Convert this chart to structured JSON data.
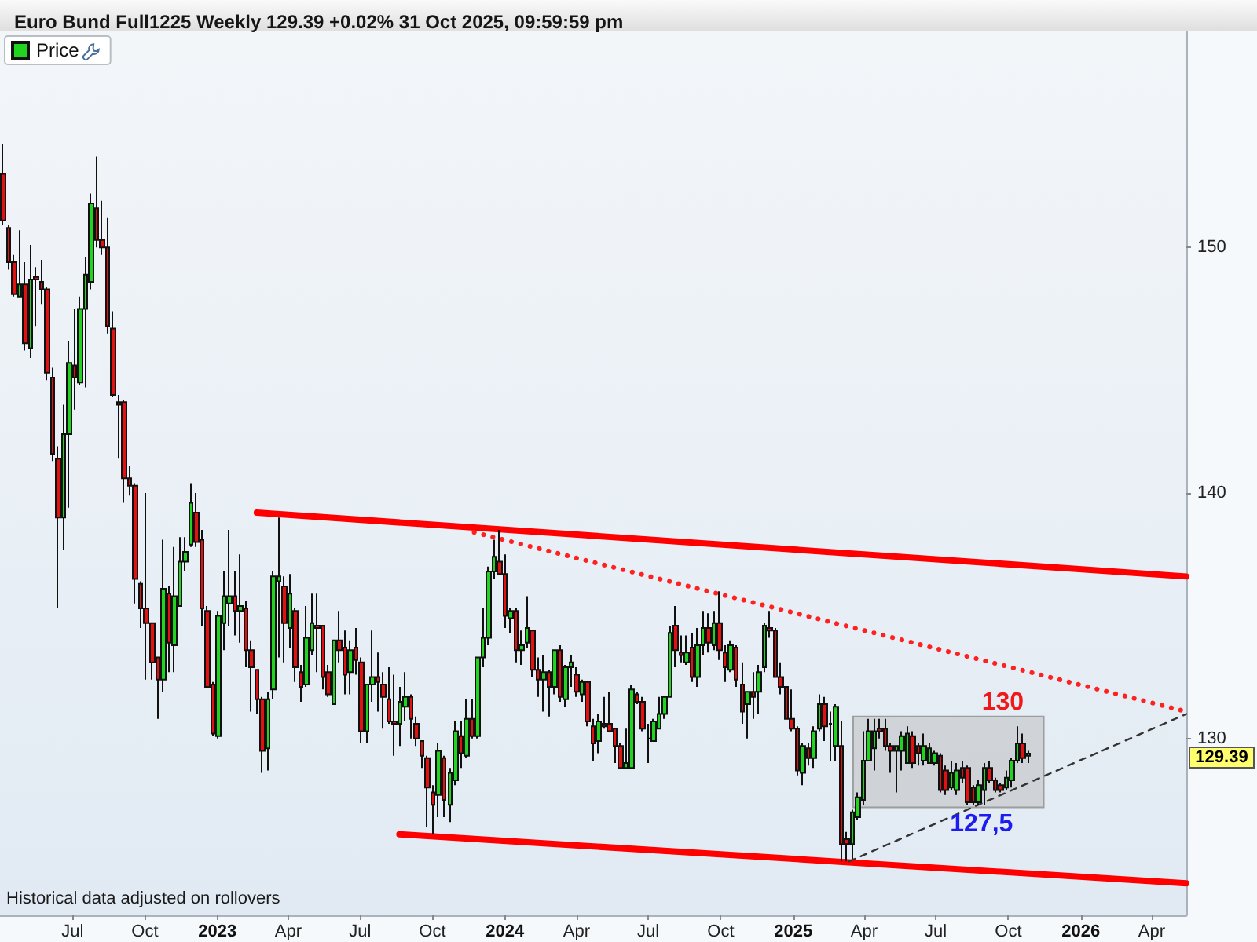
{
  "chart_data": {
    "type": "candlestick",
    "title": "Euro Bund Full1225 Weekly 129.39 +0.02% 31 Oct 2025, 09:59:59 pm",
    "legend": "top left",
    "marker": "none",
    "xlim": [
      "2022-03-31",
      "2026-05-15"
    ],
    "xticks": [
      {
        "value": "2022-07-01",
        "label": "Jul"
      },
      {
        "value": "2022-10-01",
        "label": "Oct"
      },
      {
        "value": "2023-01-01",
        "label": "2023"
      },
      {
        "value": "2023-04-01",
        "label": "Apr"
      },
      {
        "value": "2023-07-01",
        "label": "Jul"
      },
      {
        "value": "2023-10-01",
        "label": "Oct"
      },
      {
        "value": "2024-01-01",
        "label": "2024"
      },
      {
        "value": "2024-04-01",
        "label": "Apr"
      },
      {
        "value": "2024-07-01",
        "label": "Jul"
      },
      {
        "value": "2024-10-01",
        "label": "Oct"
      },
      {
        "value": "2025-01-01",
        "label": "2025"
      },
      {
        "value": "2025-04-01",
        "label": "Apr"
      },
      {
        "value": "2025-07-01",
        "label": "Jul"
      },
      {
        "value": "2025-10-01",
        "label": "Oct"
      },
      {
        "value": "2026-01-01",
        "label": "2026"
      },
      {
        "value": "2026-04-01",
        "label": "Apr"
      }
    ],
    "ylim": [
      122.8,
      158.8
    ],
    "yticks": [
      130,
      140,
      150
    ],
    "annotations": [
      "Historical data adjusted on rollovers",
      "129.39",
      {
        "text": "130",
        "x": "2025-09-24",
        "y": 130.9
      },
      {
        "text": "127,5",
        "x": "2025-08-28",
        "y": 127.2
      }
    ],
    "series": [
      {
        "name": "Price",
        "x": [
          "2022-04-04",
          "2022-04-11",
          "2022-04-18",
          "2022-04-25",
          "2022-05-02",
          "2022-05-09",
          "2022-05-16",
          "2022-05-23",
          "2022-05-30",
          "2022-06-06",
          "2022-06-13",
          "2022-06-20",
          "2022-06-27",
          "2022-07-04",
          "2022-07-11",
          "2022-07-18",
          "2022-07-25",
          "2022-08-01",
          "2022-08-08",
          "2022-08-15",
          "2022-08-22",
          "2022-08-29",
          "2022-09-05",
          "2022-09-12",
          "2022-09-19",
          "2022-09-26",
          "2022-10-03",
          "2022-10-10",
          "2022-10-17",
          "2022-10-24",
          "2022-10-31",
          "2022-11-07",
          "2022-11-14",
          "2022-11-21",
          "2022-11-28",
          "2022-12-05",
          "2022-12-12",
          "2022-12-19",
          "2022-12-26",
          "2023-01-02",
          "2023-01-09",
          "2023-01-16",
          "2023-01-23",
          "2023-01-30",
          "2023-02-06",
          "2023-02-13",
          "2023-02-20",
          "2023-02-27",
          "2023-03-06",
          "2023-03-13",
          "2023-03-20",
          "2023-03-27",
          "2023-04-03",
          "2023-04-10",
          "2023-04-17",
          "2023-04-24",
          "2023-05-01",
          "2023-05-08",
          "2023-05-15",
          "2023-05-22",
          "2023-05-29",
          "2023-06-05",
          "2023-06-12",
          "2023-06-19",
          "2023-06-26",
          "2023-07-03",
          "2023-07-10",
          "2023-07-17",
          "2023-07-24",
          "2023-07-31",
          "2023-08-07",
          "2023-08-14",
          "2023-08-21",
          "2023-08-28",
          "2023-09-04",
          "2023-09-11",
          "2023-09-18",
          "2023-09-25",
          "2023-10-02",
          "2023-10-09",
          "2023-10-16",
          "2023-10-23",
          "2023-10-30",
          "2023-11-06",
          "2023-11-13",
          "2023-11-20",
          "2023-11-27",
          "2023-12-04",
          "2023-12-11",
          "2023-12-18",
          "2023-12-25",
          "2024-01-01",
          "2024-01-08",
          "2024-01-15",
          "2024-01-22",
          "2024-01-29",
          "2024-02-05",
          "2024-02-12",
          "2024-02-19",
          "2024-02-26",
          "2024-03-04",
          "2024-03-11",
          "2024-03-18",
          "2024-03-25",
          "2024-04-01",
          "2024-04-08",
          "2024-04-15",
          "2024-04-22",
          "2024-04-29",
          "2024-05-06",
          "2024-05-13",
          "2024-05-20",
          "2024-05-27",
          "2024-06-03",
          "2024-06-10",
          "2024-06-17",
          "2024-06-24",
          "2024-07-01",
          "2024-07-08",
          "2024-07-15",
          "2024-07-22",
          "2024-07-29",
          "2024-08-05",
          "2024-08-12",
          "2024-08-19",
          "2024-08-26",
          "2024-09-02",
          "2024-09-09",
          "2024-09-16",
          "2024-09-23",
          "2024-09-30",
          "2024-10-07",
          "2024-10-14",
          "2024-10-21",
          "2024-10-28",
          "2024-11-04",
          "2024-11-11",
          "2024-11-18",
          "2024-11-25",
          "2024-12-02",
          "2024-12-09",
          "2024-12-16",
          "2024-12-23",
          "2024-12-30",
          "2025-01-06",
          "2025-01-13",
          "2025-01-20",
          "2025-01-27",
          "2025-02-03",
          "2025-02-10",
          "2025-02-17",
          "2025-02-24",
          "2025-03-03",
          "2025-03-10",
          "2025-03-17",
          "2025-03-24",
          "2025-03-31",
          "2025-04-07",
          "2025-04-14",
          "2025-04-21",
          "2025-04-28",
          "2025-05-05",
          "2025-05-12",
          "2025-05-19",
          "2025-05-26",
          "2025-06-02",
          "2025-06-09",
          "2025-06-16",
          "2025-06-23",
          "2025-06-30",
          "2025-07-07",
          "2025-07-14",
          "2025-07-21",
          "2025-07-28",
          "2025-08-04",
          "2025-08-11",
          "2025-08-18",
          "2025-08-25",
          "2025-09-01",
          "2025-09-08",
          "2025-09-15",
          "2025-09-22",
          "2025-09-29",
          "2025-10-06",
          "2025-10-13",
          "2025-10-20",
          "2025-10-27"
        ],
        "ohlc": [
          [
            153.0,
            154.2,
            150.9,
            151.1
          ],
          [
            150.8,
            150.9,
            149.1,
            149.4
          ],
          [
            149.4,
            149.7,
            148.0,
            148.1
          ],
          [
            148.0,
            150.7,
            148.0,
            148.5
          ],
          [
            148.5,
            149.4,
            145.8,
            146.1
          ],
          [
            145.9,
            150.1,
            145.5,
            148.7
          ],
          [
            148.8,
            149.2,
            146.8,
            148.7
          ],
          [
            148.6,
            149.5,
            147.7,
            148.3
          ],
          [
            148.3,
            148.4,
            144.6,
            144.9
          ],
          [
            144.7,
            145.1,
            141.3,
            141.6
          ],
          [
            141.4,
            141.9,
            135.3,
            139.0
          ],
          [
            139.0,
            143.6,
            137.7,
            142.4
          ],
          [
            142.4,
            146.2,
            139.4,
            145.3
          ],
          [
            145.2,
            147.5,
            143.4,
            144.7
          ],
          [
            144.5,
            148.0,
            144.4,
            147.5
          ],
          [
            147.5,
            149.6,
            144.3,
            148.9
          ],
          [
            148.6,
            152.2,
            148.3,
            151.8
          ],
          [
            151.6,
            153.7,
            150.0,
            150.3
          ],
          [
            150.3,
            151.9,
            149.7,
            150.0
          ],
          [
            150.0,
            151.2,
            146.5,
            146.8
          ],
          [
            146.7,
            147.4,
            143.9,
            144.0
          ],
          [
            143.7,
            144.0,
            141.4,
            143.6
          ],
          [
            143.7,
            143.8,
            139.6,
            140.6
          ],
          [
            140.6,
            141.1,
            139.9,
            140.3
          ],
          [
            140.3,
            140.4,
            135.5,
            136.5
          ],
          [
            136.3,
            136.4,
            134.5,
            135.3
          ],
          [
            135.3,
            140.0,
            132.4,
            134.7
          ],
          [
            134.7,
            134.7,
            132.4,
            133.1
          ],
          [
            133.3,
            133.3,
            130.8,
            132.4
          ],
          [
            132.4,
            138.1,
            131.9,
            136.1
          ],
          [
            135.9,
            136.2,
            132.7,
            133.9
          ],
          [
            133.8,
            137.8,
            132.7,
            135.8
          ],
          [
            135.4,
            138.2,
            135.4,
            137.2
          ],
          [
            137.2,
            138.2,
            136.8,
            137.6
          ],
          [
            137.9,
            140.4,
            137.8,
            139.6
          ],
          [
            139.2,
            140.0,
            137.8,
            138.0
          ],
          [
            138.1,
            138.5,
            134.6,
            135.3
          ],
          [
            135.2,
            135.4,
            132.1,
            132.1
          ],
          [
            132.2,
            132.3,
            130.1,
            130.2
          ],
          [
            130.1,
            135.2,
            130.0,
            135.0
          ],
          [
            134.7,
            136.8,
            133.6,
            135.8
          ],
          [
            135.5,
            138.5,
            134.6,
            135.8
          ],
          [
            135.8,
            136.8,
            134.2,
            135.2
          ],
          [
            135.2,
            137.5,
            133.9,
            135.4
          ],
          [
            135.3,
            135.6,
            132.9,
            133.6
          ],
          [
            133.6,
            134.0,
            131.1,
            132.9
          ],
          [
            132.8,
            132.8,
            131.0,
            131.6
          ],
          [
            131.6,
            131.7,
            128.6,
            129.5
          ],
          [
            129.6,
            131.9,
            128.7,
            131.6
          ],
          [
            132.0,
            136.8,
            131.6,
            136.6
          ],
          [
            136.4,
            139.0,
            133.3,
            136.6
          ],
          [
            136.2,
            136.6,
            133.1,
            134.7
          ],
          [
            134.5,
            136.7,
            133.7,
            135.9
          ],
          [
            135.2,
            135.3,
            132.3,
            132.9
          ],
          [
            132.7,
            133.0,
            131.5,
            132.1
          ],
          [
            132.2,
            135.4,
            132.1,
            134.1
          ],
          [
            133.6,
            135.9,
            133.4,
            134.7
          ],
          [
            134.6,
            135.9,
            132.7,
            134.5
          ],
          [
            134.6,
            134.6,
            132.0,
            132.5
          ],
          [
            132.7,
            133.0,
            131.7,
            131.8
          ],
          [
            131.4,
            134.0,
            131.4,
            134.0
          ],
          [
            134.0,
            135.2,
            133.1,
            133.6
          ],
          [
            133.7,
            134.4,
            131.8,
            132.6
          ],
          [
            132.7,
            134.0,
            131.8,
            133.6
          ],
          [
            133.7,
            134.5,
            132.6,
            133.2
          ],
          [
            133.1,
            133.3,
            129.8,
            130.3
          ],
          [
            130.3,
            132.2,
            129.8,
            132.2
          ],
          [
            132.2,
            134.4,
            131.5,
            132.5
          ],
          [
            132.5,
            133.5,
            131.1,
            132.3
          ],
          [
            132.2,
            132.7,
            130.4,
            131.7
          ],
          [
            131.6,
            132.9,
            130.6,
            130.7
          ],
          [
            130.7,
            132.6,
            129.3,
            130.6
          ],
          [
            130.6,
            132.1,
            129.7,
            131.5
          ],
          [
            131.3,
            132.7,
            130.7,
            131.7
          ],
          [
            131.7,
            131.8,
            130.0,
            130.8
          ],
          [
            130.6,
            130.9,
            129.7,
            130.0
          ],
          [
            129.9,
            129.9,
            128.8,
            129.3
          ],
          [
            129.2,
            129.3,
            126.4,
            128.0
          ],
          [
            127.8,
            128.1,
            126.1,
            127.3
          ],
          [
            127.7,
            129.8,
            126.8,
            129.5
          ],
          [
            129.2,
            129.3,
            126.8,
            127.5
          ],
          [
            127.3,
            128.8,
            126.6,
            128.6
          ],
          [
            128.3,
            130.7,
            128.1,
            130.3
          ],
          [
            130.1,
            130.7,
            128.8,
            129.4
          ],
          [
            129.3,
            131.6,
            129.2,
            130.8
          ],
          [
            130.8,
            131.6,
            130.0,
            130.1
          ],
          [
            130.1,
            133.3,
            130.0,
            133.3
          ],
          [
            133.3,
            135.3,
            132.9,
            134.1
          ],
          [
            134.1,
            137.0,
            133.8,
            136.8
          ],
          [
            136.8,
            138.1,
            136.5,
            137.4
          ],
          [
            137.2,
            138.5,
            136.7,
            136.7
          ],
          [
            136.7,
            137.5,
            134.5,
            135.0
          ],
          [
            134.9,
            135.3,
            134.3,
            135.2
          ],
          [
            135.2,
            135.3,
            133.1,
            133.6
          ],
          [
            133.6,
            134.4,
            133.0,
            133.8
          ],
          [
            133.9,
            135.8,
            133.7,
            134.5
          ],
          [
            134.4,
            134.4,
            132.5,
            132.8
          ],
          [
            132.8,
            133.3,
            131.7,
            132.4
          ],
          [
            132.4,
            133.4,
            131.1,
            132.7
          ],
          [
            132.7,
            132.8,
            130.9,
            132.1
          ],
          [
            132.1,
            133.6,
            131.8,
            133.6
          ],
          [
            133.6,
            133.8,
            131.5,
            131.7
          ],
          [
            131.6,
            133.0,
            131.3,
            132.9
          ],
          [
            132.9,
            133.4,
            132.1,
            133.1
          ],
          [
            132.6,
            132.9,
            131.7,
            131.9
          ],
          [
            131.8,
            132.4,
            131.5,
            132.3
          ],
          [
            132.3,
            132.3,
            130.5,
            130.7
          ],
          [
            130.5,
            130.8,
            129.1,
            129.8
          ],
          [
            129.9,
            131.0,
            129.4,
            130.7
          ],
          [
            130.6,
            131.7,
            130.4,
            130.5
          ],
          [
            130.6,
            131.9,
            130.3,
            130.3
          ],
          [
            130.4,
            130.4,
            129.0,
            129.7
          ],
          [
            129.7,
            129.8,
            128.8,
            128.8
          ],
          [
            128.8,
            130.4,
            128.8,
            129.0
          ],
          [
            128.8,
            132.2,
            128.8,
            132.0
          ],
          [
            131.8,
            131.9,
            131.4,
            131.5
          ],
          [
            131.5,
            131.7,
            130.3,
            130.4
          ],
          [
            130.0,
            130.6,
            129.0,
            130.0
          ],
          [
            129.9,
            130.8,
            129.9,
            130.7
          ],
          [
            130.4,
            131.7,
            130.4,
            131.0
          ],
          [
            131.0,
            131.7,
            130.8,
            131.7
          ],
          [
            131.7,
            134.6,
            131.7,
            134.3
          ],
          [
            134.6,
            135.4,
            132.9,
            133.6
          ],
          [
            133.5,
            134.2,
            133.1,
            133.4
          ],
          [
            133.1,
            134.2,
            133.0,
            133.5
          ],
          [
            133.7,
            134.3,
            132.3,
            132.5
          ],
          [
            132.5,
            134.5,
            132.1,
            133.8
          ],
          [
            133.8,
            135.2,
            133.4,
            134.5
          ],
          [
            134.5,
            135.1,
            133.5,
            133.9
          ],
          [
            133.8,
            135.2,
            133.6,
            134.7
          ],
          [
            134.7,
            136.0,
            133.2,
            133.6
          ],
          [
            133.5,
            133.8,
            132.3,
            132.9
          ],
          [
            132.8,
            134.0,
            132.7,
            133.8
          ],
          [
            133.7,
            133.8,
            132.1,
            132.4
          ],
          [
            132.2,
            133.1,
            130.6,
            131.1
          ],
          [
            131.4,
            131.9,
            130.0,
            131.9
          ],
          [
            131.9,
            132.7,
            130.8,
            131.7
          ],
          [
            131.9,
            133.0,
            131.0,
            132.7
          ],
          [
            132.9,
            134.7,
            132.7,
            134.6
          ],
          [
            134.5,
            135.2,
            134.1,
            134.4
          ],
          [
            134.4,
            134.5,
            132.5,
            132.5
          ],
          [
            132.5,
            133.1,
            131.8,
            132.1
          ],
          [
            132.1,
            132.1,
            130.8,
            130.8
          ],
          [
            130.8,
            132.0,
            130.3,
            130.4
          ],
          [
            130.4,
            130.5,
            128.5,
            128.7
          ],
          [
            128.6,
            129.8,
            128.1,
            129.7
          ],
          [
            129.6,
            129.8,
            128.9,
            129.2
          ],
          [
            129.2,
            130.5,
            128.8,
            130.3
          ],
          [
            130.4,
            131.8,
            130.3,
            131.4
          ],
          [
            131.4,
            131.7,
            129.9,
            130.5
          ],
          [
            130.6,
            131.1,
            129.1,
            130.6
          ],
          [
            129.7,
            131.4,
            129.1,
            131.3
          ],
          [
            129.7,
            130.7,
            125.0,
            125.7
          ],
          [
            125.9,
            126.2,
            125.0,
            125.7
          ],
          [
            125.7,
            127.1,
            125.1,
            127.0
          ],
          [
            126.8,
            127.8,
            126.7,
            127.6
          ],
          [
            127.5,
            130.3,
            127.3,
            129.1
          ],
          [
            129.1,
            130.8,
            129.1,
            130.3
          ],
          [
            129.6,
            130.8,
            128.7,
            130.3
          ],
          [
            130.4,
            130.8,
            130.0,
            130.3
          ],
          [
            130.4,
            130.8,
            129.5,
            129.7
          ],
          [
            129.7,
            129.8,
            128.6,
            129.5
          ],
          [
            129.5,
            129.7,
            127.8,
            129.7
          ],
          [
            129.5,
            130.3,
            128.7,
            130.1
          ],
          [
            129.0,
            130.5,
            129.0,
            130.2
          ],
          [
            130.1,
            130.3,
            128.8,
            129.0
          ],
          [
            129.7,
            129.8,
            128.9,
            129.4
          ],
          [
            129.1,
            130.2,
            128.9,
            129.7
          ],
          [
            129.0,
            129.8,
            129.0,
            129.6
          ],
          [
            129.0,
            129.5,
            128.9,
            129.4
          ],
          [
            129.3,
            129.4,
            127.8,
            127.9
          ],
          [
            128.7,
            128.9,
            127.7,
            127.9
          ],
          [
            128.0,
            129.1,
            127.9,
            128.6
          ],
          [
            127.9,
            129.0,
            127.7,
            128.7
          ],
          [
            128.8,
            129.1,
            128.2,
            128.4
          ],
          [
            128.8,
            128.9,
            127.3,
            127.4
          ],
          [
            128.0,
            128.1,
            127.3,
            127.4
          ],
          [
            127.4,
            128.3,
            127.3,
            128.1
          ],
          [
            127.9,
            129.0,
            127.3,
            128.8
          ],
          [
            128.8,
            129.1,
            128.2,
            128.3
          ],
          [
            128.3,
            128.4,
            127.8,
            127.9
          ],
          [
            128.1,
            128.2,
            127.8,
            127.9
          ],
          [
            128.0,
            128.7,
            127.9,
            128.4
          ],
          [
            128.3,
            129.2,
            128.0,
            129.1
          ],
          [
            129.1,
            130.5,
            129.0,
            129.8
          ],
          [
            129.8,
            130.2,
            129.0,
            129.2
          ],
          [
            129.3,
            129.5,
            129.0,
            129.39
          ]
        ]
      },
      {
        "type": "line",
        "x": [
          "2025-03-18",
          "2025-11-15"
        ],
        "values": [
          null,
          null
        ],
        "lower": [
          127.2,
          127.2
        ],
        "upper": [
          130.9,
          130.9
        ],
        "color": "#c9cdd1"
      },
      {
        "type": "line",
        "x": [
          "2023-02-20",
          "2026-05-15"
        ],
        "values": [
          139.2,
          136.6
        ],
        "color": "#ff0000",
        "line_style": "solid"
      },
      {
        "type": "line",
        "x": [
          "2023-08-20",
          "2026-05-15"
        ],
        "values": [
          126.1,
          124.1
        ],
        "color": "#ff0000",
        "line_style": "solid"
      },
      {
        "type": "line",
        "x": [
          "2023-11-23",
          "2026-05-15"
        ],
        "values": [
          138.4,
          131.1
        ],
        "color": "#ff2020",
        "line_style": "dotted"
      },
      {
        "type": "line",
        "x": [
          "2025-03-13",
          "2026-05-15"
        ],
        "values": [
          125.0,
          131.0
        ],
        "color": "#333333",
        "line_style": "dashed"
      }
    ]
  }
}
